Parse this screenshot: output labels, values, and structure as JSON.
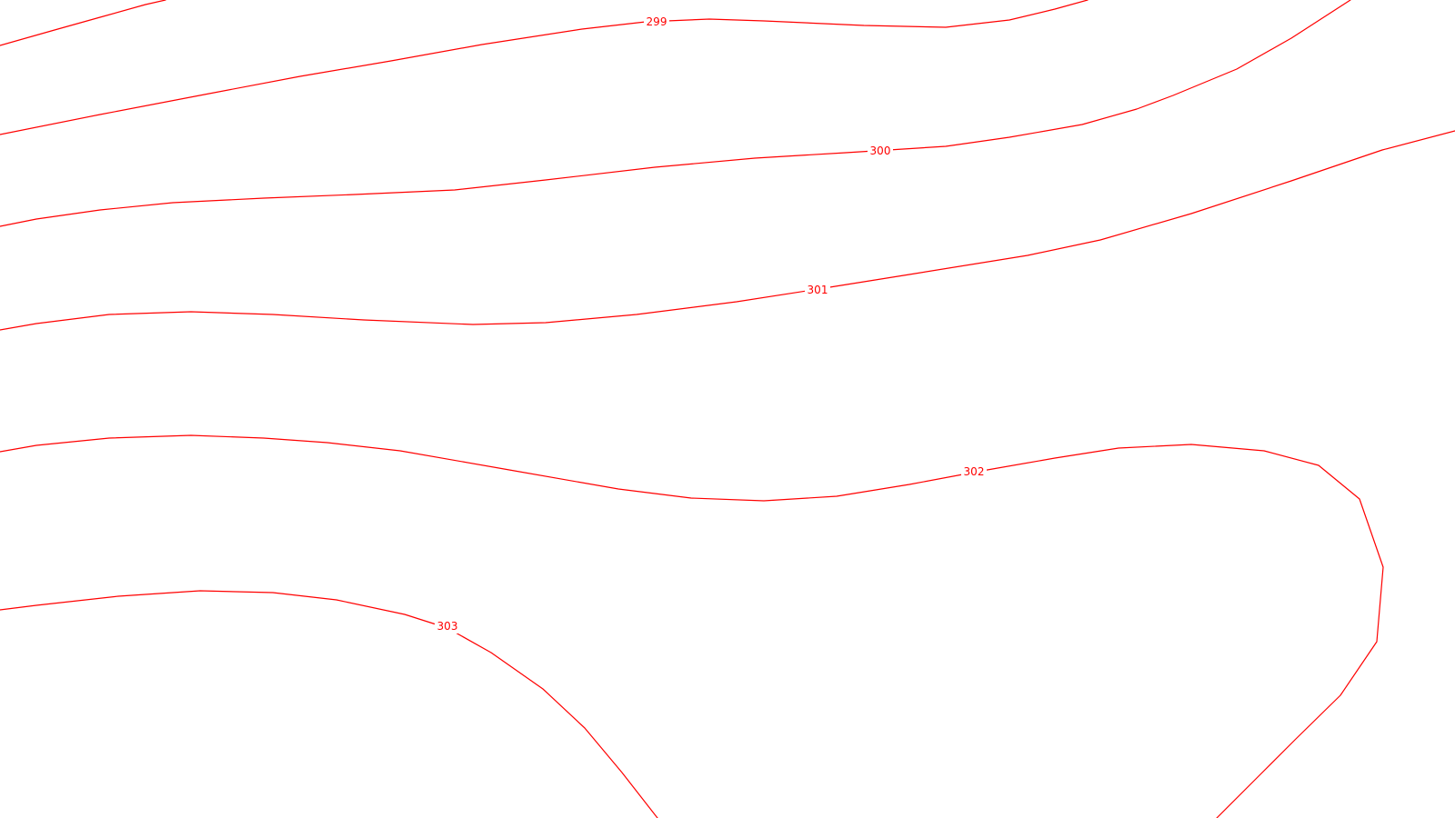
{
  "map": {
    "background_color": "#ffffff",
    "line_color": "#ff0000",
    "contours": [
      {
        "id": "c298",
        "label": ""
      },
      {
        "id": "c299",
        "label": "299"
      },
      {
        "id": "c300",
        "label": "300"
      },
      {
        "id": "c301",
        "label": "301"
      },
      {
        "id": "c302",
        "label": "302"
      },
      {
        "id": "c303",
        "label": "303"
      }
    ]
  }
}
